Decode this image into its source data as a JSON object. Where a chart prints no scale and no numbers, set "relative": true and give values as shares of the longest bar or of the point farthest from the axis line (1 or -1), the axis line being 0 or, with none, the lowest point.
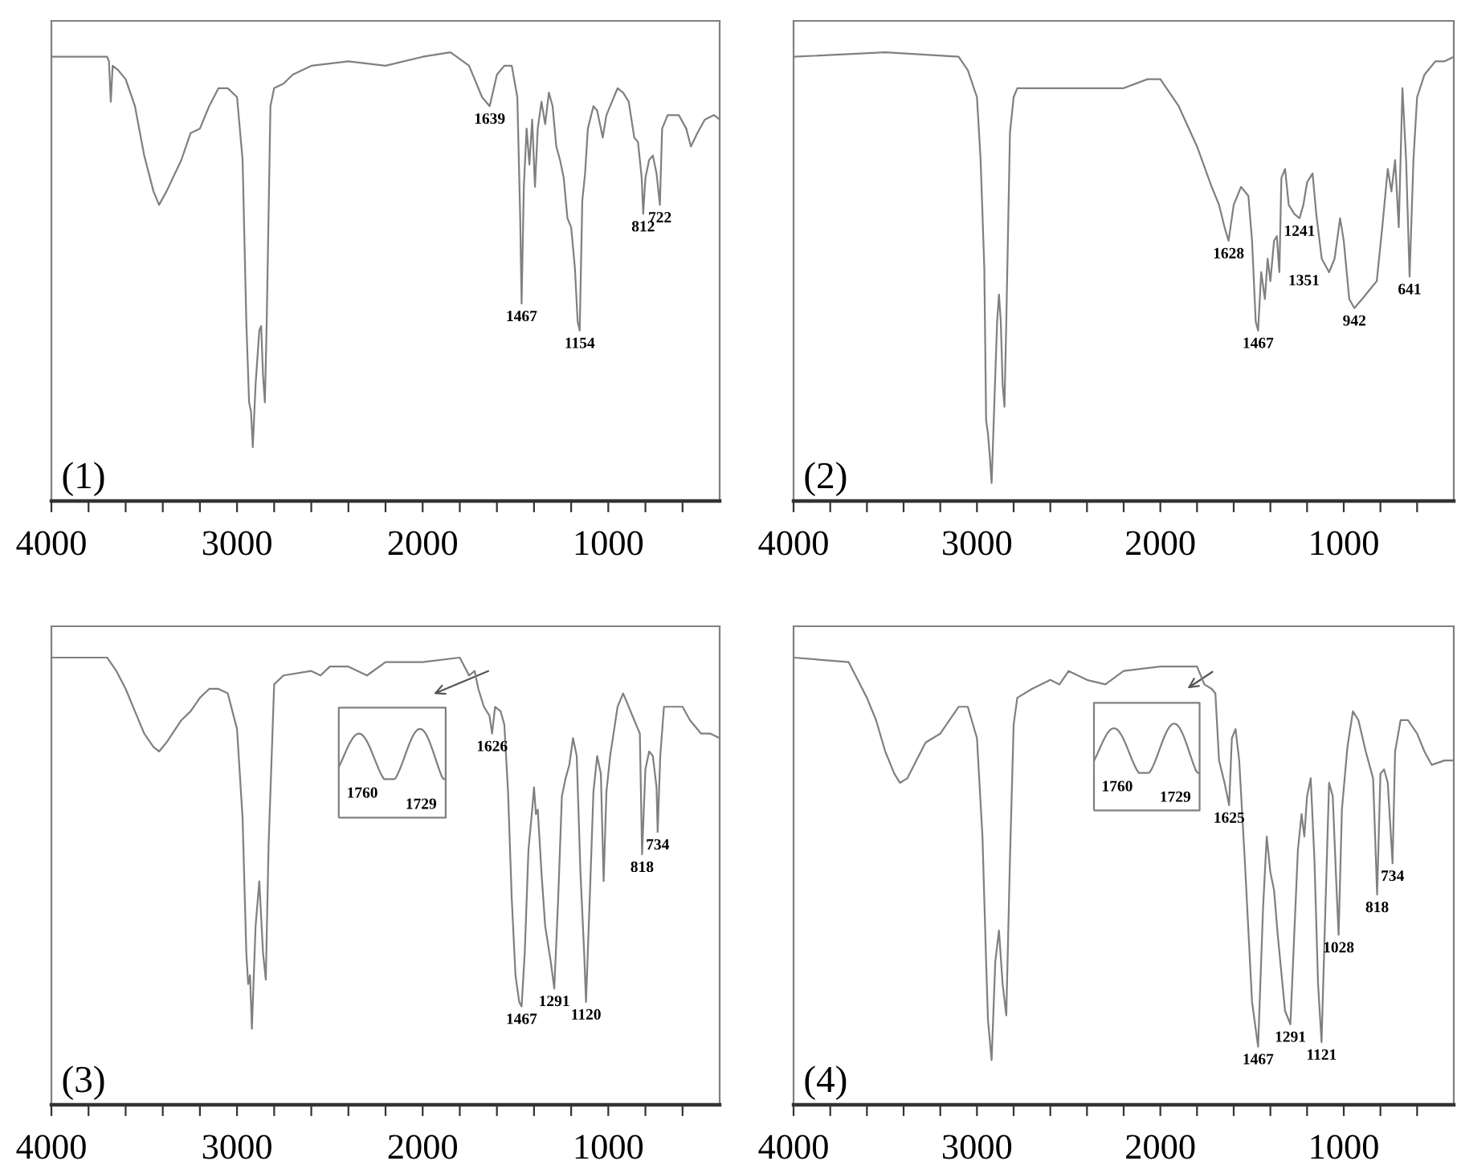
{
  "chart_data": [
    {
      "type": "line",
      "relative": true,
      "tick_labels": "x",
      "xlim": [
        4000,
        400
      ],
      "xticks": [
        4000,
        {
          "value": 3800,
          "label": null
        },
        {
          "value": 3600,
          "label": null
        },
        {
          "value": 3400,
          "label": null
        },
        {
          "value": 3200,
          "label": null
        },
        3000,
        {
          "value": 2800,
          "label": null
        },
        {
          "value": 2600,
          "label": null
        },
        {
          "value": 2400,
          "label": null
        },
        {
          "value": 2200,
          "label": null
        },
        2000,
        {
          "value": 1800,
          "label": null
        },
        {
          "value": 1600,
          "label": null
        },
        {
          "value": 1400,
          "label": null
        },
        {
          "value": 1200,
          "label": null
        },
        1000,
        {
          "value": 800,
          "label": null
        },
        {
          "value": 600,
          "label": null
        }
      ],
      "series": [
        {
          "color": "#808080",
          "x": [
            4000,
            3700,
            3690,
            3680,
            3670,
            3640,
            3600,
            3550,
            3500,
            3450,
            3420,
            3380,
            3300,
            3250,
            3200,
            3150,
            3100,
            3050,
            3000,
            2970,
            2950,
            2935,
            2925,
            2915,
            2900,
            2880,
            2870,
            2860,
            2850,
            2840,
            2820,
            2800,
            2750,
            2700,
            2600,
            2400,
            2200,
            2000,
            1850,
            1750,
            1680,
            1639,
            1600,
            1560,
            1520,
            1490,
            1475,
            1467,
            1455,
            1440,
            1425,
            1410,
            1395,
            1380,
            1360,
            1340,
            1320,
            1300,
            1280,
            1260,
            1240,
            1220,
            1200,
            1180,
            1165,
            1154,
            1140,
            1125,
            1110,
            1080,
            1060,
            1030,
            1010,
            980,
            950,
            920,
            890,
            860,
            840,
            820,
            812,
            800,
            780,
            760,
            740,
            722,
            710,
            680,
            620,
            580,
            555,
            520,
            480,
            430,
            400
          ],
          "values": [
            0.99,
            0.99,
            0.98,
            0.89,
            0.97,
            0.96,
            0.94,
            0.88,
            0.77,
            0.69,
            0.66,
            0.69,
            0.76,
            0.82,
            0.83,
            0.88,
            0.92,
            0.92,
            0.9,
            0.76,
            0.4,
            0.22,
            0.2,
            0.12,
            0.26,
            0.38,
            0.39,
            0.28,
            0.22,
            0.4,
            0.88,
            0.92,
            0.93,
            0.95,
            0.97,
            0.98,
            0.97,
            0.99,
            1.0,
            0.97,
            0.9,
            0.88,
            0.95,
            0.97,
            0.97,
            0.9,
            0.64,
            0.44,
            0.7,
            0.83,
            0.75,
            0.85,
            0.7,
            0.83,
            0.89,
            0.84,
            0.91,
            0.88,
            0.79,
            0.76,
            0.72,
            0.63,
            0.61,
            0.52,
            0.4,
            0.38,
            0.67,
            0.73,
            0.83,
            0.88,
            0.87,
            0.81,
            0.86,
            0.89,
            0.92,
            0.91,
            0.89,
            0.81,
            0.8,
            0.72,
            0.64,
            0.72,
            0.76,
            0.77,
            0.73,
            0.66,
            0.83,
            0.86,
            0.86,
            0.83,
            0.79,
            0.82,
            0.85,
            0.86,
            0.85
          ]
        }
      ],
      "annotations": [
        "(1)",
        {
          "text": "1639",
          "x": 1639,
          "y": 0.88
        },
        {
          "text": "1467",
          "x": 1467,
          "y": 0.44
        },
        {
          "text": "1154",
          "x": 1154,
          "y": 0.38
        },
        {
          "text": "812",
          "x": 812,
          "y": 0.64
        },
        {
          "text": "722",
          "x": 722,
          "y": 0.66
        }
      ]
    },
    {
      "type": "line",
      "relative": true,
      "tick_labels": "x",
      "xlim": [
        4000,
        400
      ],
      "xticks": [
        4000,
        {
          "value": 3800,
          "label": null
        },
        {
          "value": 3600,
          "label": null
        },
        {
          "value": 3400,
          "label": null
        },
        {
          "value": 3200,
          "label": null
        },
        3000,
        {
          "value": 2800,
          "label": null
        },
        {
          "value": 2600,
          "label": null
        },
        {
          "value": 2400,
          "label": null
        },
        {
          "value": 2200,
          "label": null
        },
        2000,
        {
          "value": 1800,
          "label": null
        },
        {
          "value": 1600,
          "label": null
        },
        {
          "value": 1400,
          "label": null
        },
        {
          "value": 1200,
          "label": null
        },
        1000,
        {
          "value": 800,
          "label": null
        },
        {
          "value": 600,
          "label": null
        }
      ],
      "series": [
        {
          "color": "#808080",
          "x": [
            4000,
            3500,
            3100,
            3050,
            3000,
            2980,
            2960,
            2950,
            2940,
            2930,
            2920,
            2910,
            2890,
            2880,
            2870,
            2860,
            2850,
            2840,
            2820,
            2800,
            2780,
            2600,
            2400,
            2200,
            2070,
            2000,
            1900,
            1800,
            1720,
            1680,
            1650,
            1628,
            1600,
            1560,
            1520,
            1500,
            1480,
            1467,
            1450,
            1430,
            1415,
            1400,
            1380,
            1365,
            1351,
            1340,
            1320,
            1300,
            1270,
            1241,
            1220,
            1200,
            1170,
            1150,
            1120,
            1080,
            1050,
            1020,
            1000,
            970,
            942,
            900,
            860,
            820,
            790,
            760,
            740,
            720,
            700,
            680,
            660,
            641,
            620,
            600,
            560,
            500,
            450,
            400
          ],
          "values": [
            0.99,
            1.0,
            0.99,
            0.96,
            0.9,
            0.76,
            0.52,
            0.18,
            0.15,
            0.1,
            0.04,
            0.16,
            0.4,
            0.46,
            0.4,
            0.26,
            0.21,
            0.4,
            0.82,
            0.9,
            0.92,
            0.92,
            0.92,
            0.92,
            0.94,
            0.94,
            0.88,
            0.79,
            0.7,
            0.66,
            0.61,
            0.58,
            0.66,
            0.7,
            0.68,
            0.58,
            0.4,
            0.38,
            0.51,
            0.45,
            0.54,
            0.49,
            0.58,
            0.59,
            0.51,
            0.72,
            0.74,
            0.66,
            0.64,
            0.63,
            0.66,
            0.71,
            0.73,
            0.64,
            0.54,
            0.51,
            0.54,
            0.63,
            0.58,
            0.45,
            0.43,
            0.45,
            0.47,
            0.49,
            0.61,
            0.74,
            0.69,
            0.76,
            0.61,
            0.92,
            0.76,
            0.5,
            0.76,
            0.9,
            0.95,
            0.98,
            0.98,
            0.99
          ]
        }
      ],
      "annotations": [
        "(2)",
        {
          "text": "1628",
          "x": 1628,
          "y": 0.58
        },
        {
          "text": "1467",
          "x": 1467,
          "y": 0.38
        },
        {
          "text": "1351",
          "x": 1351,
          "y": 0.51
        },
        {
          "text": "1241",
          "x": 1241,
          "y": 0.63
        },
        {
          "text": "942",
          "x": 942,
          "y": 0.43
        },
        {
          "text": "641",
          "x": 641,
          "y": 0.5
        }
      ]
    },
    {
      "type": "line",
      "relative": true,
      "tick_labels": "x",
      "xlim": [
        4000,
        400
      ],
      "xticks": [
        4000,
        {
          "value": 3800,
          "label": null
        },
        {
          "value": 3600,
          "label": null
        },
        {
          "value": 3400,
          "label": null
        },
        {
          "value": 3200,
          "label": null
        },
        3000,
        {
          "value": 2800,
          "label": null
        },
        {
          "value": 2600,
          "label": null
        },
        {
          "value": 2400,
          "label": null
        },
        {
          "value": 2200,
          "label": null
        },
        2000,
        {
          "value": 1800,
          "label": null
        },
        {
          "value": 1600,
          "label": null
        },
        {
          "value": 1400,
          "label": null
        },
        {
          "value": 1200,
          "label": null
        },
        1000,
        {
          "value": 800,
          "label": null
        },
        {
          "value": 600,
          "label": null
        }
      ],
      "series": [
        {
          "color": "#808080",
          "x": [
            4000,
            3700,
            3650,
            3600,
            3550,
            3500,
            3450,
            3420,
            3380,
            3300,
            3250,
            3200,
            3150,
            3100,
            3050,
            3000,
            2970,
            2950,
            2940,
            2930,
            2920,
            2900,
            2880,
            2860,
            2845,
            2830,
            2800,
            2750,
            2600,
            2550,
            2500,
            2400,
            2300,
            2200,
            2000,
            1800,
            1750,
            1720,
            1700,
            1670,
            1640,
            1626,
            1610,
            1580,
            1560,
            1540,
            1520,
            1500,
            1480,
            1467,
            1450,
            1430,
            1410,
            1400,
            1390,
            1380,
            1360,
            1340,
            1310,
            1291,
            1270,
            1250,
            1230,
            1210,
            1190,
            1170,
            1150,
            1130,
            1120,
            1100,
            1080,
            1060,
            1040,
            1025,
            1010,
            990,
            950,
            920,
            900,
            860,
            830,
            818,
            800,
            780,
            760,
            740,
            734,
            720,
            700,
            650,
            600,
            560,
            500,
            450,
            400
          ],
          "values": [
            1.0,
            1.0,
            0.97,
            0.93,
            0.88,
            0.83,
            0.8,
            0.79,
            0.81,
            0.86,
            0.88,
            0.91,
            0.93,
            0.93,
            0.92,
            0.84,
            0.64,
            0.34,
            0.27,
            0.29,
            0.17,
            0.4,
            0.5,
            0.34,
            0.28,
            0.58,
            0.94,
            0.96,
            0.97,
            0.96,
            0.98,
            0.98,
            0.96,
            0.99,
            0.99,
            1.0,
            0.96,
            0.97,
            0.93,
            0.89,
            0.87,
            0.83,
            0.89,
            0.88,
            0.85,
            0.7,
            0.46,
            0.29,
            0.23,
            0.22,
            0.34,
            0.57,
            0.66,
            0.71,
            0.65,
            0.66,
            0.52,
            0.4,
            0.32,
            0.26,
            0.46,
            0.69,
            0.73,
            0.76,
            0.82,
            0.78,
            0.52,
            0.34,
            0.23,
            0.46,
            0.7,
            0.78,
            0.74,
            0.5,
            0.7,
            0.78,
            0.89,
            0.92,
            0.9,
            0.86,
            0.83,
            0.56,
            0.75,
            0.79,
            0.78,
            0.71,
            0.61,
            0.78,
            0.89,
            0.89,
            0.89,
            0.86,
            0.83,
            0.83,
            0.82
          ]
        }
      ],
      "annotations": [
        "(3)",
        "1760",
        "1729",
        {
          "text": "1626",
          "x": 1626,
          "y": 0.83
        },
        {
          "text": "1467",
          "x": 1467,
          "y": 0.22
        },
        {
          "text": "1291",
          "x": 1291,
          "y": 0.26
        },
        {
          "text": "1120",
          "x": 1120,
          "y": 0.23
        },
        {
          "text": "818",
          "x": 818,
          "y": 0.56
        },
        {
          "text": "734",
          "x": 734,
          "y": 0.61
        }
      ]
    },
    {
      "type": "line",
      "relative": true,
      "tick_labels": "x",
      "xlim": [
        4000,
        400
      ],
      "xticks": [
        4000,
        {
          "value": 3800,
          "label": null
        },
        {
          "value": 3600,
          "label": null
        },
        {
          "value": 3400,
          "label": null
        },
        {
          "value": 3200,
          "label": null
        },
        3000,
        {
          "value": 2800,
          "label": null
        },
        {
          "value": 2600,
          "label": null
        },
        {
          "value": 2400,
          "label": null
        },
        {
          "value": 2200,
          "label": null
        },
        2000,
        {
          "value": 1800,
          "label": null
        },
        {
          "value": 1600,
          "label": null
        },
        {
          "value": 1400,
          "label": null
        },
        {
          "value": 1200,
          "label": null
        },
        1000,
        {
          "value": 800,
          "label": null
        },
        {
          "value": 600,
          "label": null
        }
      ],
      "series": [
        {
          "color": "#808080",
          "x": [
            4000,
            3700,
            3650,
            3600,
            3550,
            3500,
            3450,
            3420,
            3380,
            3330,
            3280,
            3200,
            3100,
            3050,
            3000,
            2970,
            2950,
            2940,
            2920,
            2900,
            2880,
            2860,
            2840,
            2820,
            2800,
            2780,
            2700,
            2600,
            2550,
            2500,
            2400,
            2300,
            2200,
            2000,
            1800,
            1760,
            1720,
            1700,
            1680,
            1650,
            1625,
            1610,
            1590,
            1570,
            1540,
            1500,
            1467,
            1440,
            1420,
            1400,
            1380,
            1360,
            1320,
            1291,
            1270,
            1250,
            1230,
            1215,
            1200,
            1180,
            1160,
            1140,
            1121,
            1100,
            1080,
            1060,
            1040,
            1028,
            1010,
            980,
            950,
            920,
            880,
            840,
            818,
            800,
            780,
            760,
            734,
            720,
            690,
            650,
            600,
            560,
            520,
            450,
            400
          ],
          "values": [
            1.0,
            0.99,
            0.95,
            0.91,
            0.86,
            0.79,
            0.74,
            0.72,
            0.73,
            0.77,
            0.81,
            0.83,
            0.89,
            0.89,
            0.82,
            0.6,
            0.32,
            0.19,
            0.1,
            0.32,
            0.39,
            0.27,
            0.2,
            0.55,
            0.85,
            0.91,
            0.93,
            0.95,
            0.94,
            0.97,
            0.95,
            0.94,
            0.97,
            0.98,
            0.98,
            0.94,
            0.93,
            0.92,
            0.77,
            0.72,
            0.67,
            0.82,
            0.84,
            0.77,
            0.55,
            0.23,
            0.13,
            0.44,
            0.6,
            0.52,
            0.48,
            0.38,
            0.21,
            0.18,
            0.38,
            0.57,
            0.65,
            0.6,
            0.69,
            0.73,
            0.55,
            0.27,
            0.14,
            0.44,
            0.72,
            0.69,
            0.49,
            0.38,
            0.66,
            0.8,
            0.88,
            0.86,
            0.79,
            0.73,
            0.47,
            0.74,
            0.75,
            0.72,
            0.54,
            0.79,
            0.86,
            0.86,
            0.83,
            0.79,
            0.76,
            0.77,
            0.77
          ]
        }
      ],
      "annotations": [
        "(4)",
        "1760",
        "1729",
        {
          "text": "1625",
          "x": 1625,
          "y": 0.67
        },
        {
          "text": "1467",
          "x": 1467,
          "y": 0.13
        },
        {
          "text": "1291",
          "x": 1291,
          "y": 0.18
        },
        {
          "text": "1121",
          "x": 1121,
          "y": 0.14
        },
        {
          "text": "1028",
          "x": 1028,
          "y": 0.38
        },
        {
          "text": "818",
          "x": 818,
          "y": 0.47
        },
        {
          "text": "734",
          "x": 734,
          "y": 0.54
        }
      ]
    }
  ]
}
